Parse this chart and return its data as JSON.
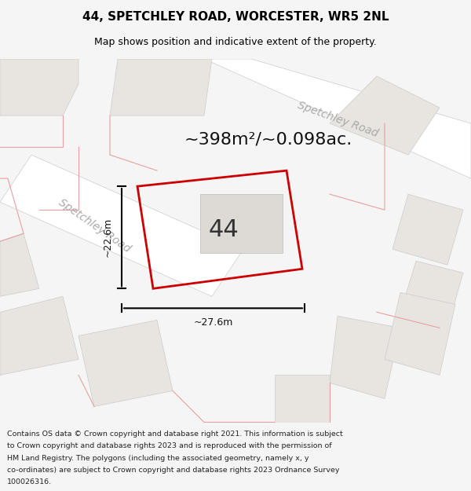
{
  "title_line1": "44, SPETCHLEY ROAD, WORCESTER, WR5 2NL",
  "title_line2": "Map shows position and indicative extent of the property.",
  "area_text": "~398m²/~0.098ac.",
  "label_number": "44",
  "dim_width": "~27.6m",
  "dim_height": "~22.6m",
  "road_label_lower": "Spetchley Road",
  "road_label_upper": "Spetchley Road",
  "footer_text": "Contains OS data © Crown copyright and database right 2021. This information is subject to Crown copyright and database rights 2023 and is reproduced with the permission of HM Land Registry. The polygons (including the associated geometry, namely x, y co-ordinates) are subject to Crown copyright and database rights 2023 Ordnance Survey 100026316.",
  "bg_color": "#f5f5f5",
  "map_bg": "#f0eeec",
  "road_color": "#ffffff",
  "road_outline": "#cccccc",
  "building_fill": "#e8e4e0",
  "building_outline": "#cccccc",
  "property_line_color": "#cc0000",
  "property_fill": "none",
  "dim_line_color": "#111111",
  "road_label_color": "#aaaaaa",
  "adjacent_road_line_color": "#e8a0a0"
}
